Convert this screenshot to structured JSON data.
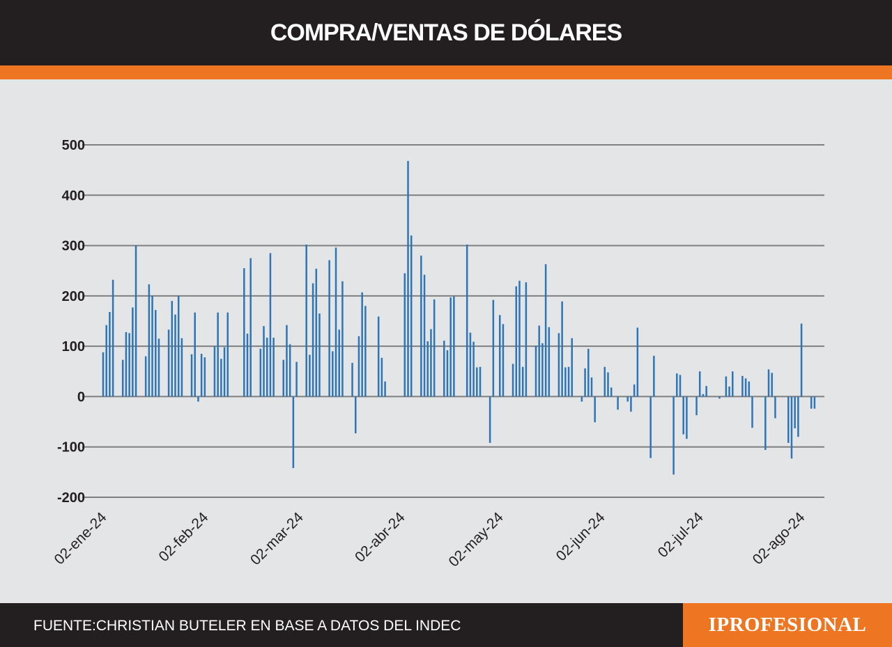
{
  "header": {
    "title": "COMPRA/VENTAS DE DÓLARES"
  },
  "footer": {
    "source": "FUENTE:CHRISTIAN BUTELER EN BASE A DATOS DEL INDEC"
  },
  "brand": {
    "logo": "IPROFESIONAL"
  },
  "colors": {
    "header_bg": "#231f20",
    "accent": "#ee7623",
    "chart_bg": "#e4e5e7",
    "bar": "#2e75b6",
    "grid": "#7f7f7f"
  },
  "chart_data": {
    "type": "bar",
    "title": "COMPRA/VENTAS DE DÓLARES",
    "xlabel": "",
    "ylabel": "",
    "ylim": [
      -200,
      500
    ],
    "yticks": [
      500,
      400,
      300,
      200,
      100,
      0,
      -100,
      -200
    ],
    "grid": true,
    "legend": "none",
    "x_tick_labels": [
      {
        "date": "2024-01-02",
        "label": "02-ene-24"
      },
      {
        "date": "2024-02-02",
        "label": "02-feb-24"
      },
      {
        "date": "2024-03-02",
        "label": "02-mar-24"
      },
      {
        "date": "2024-04-02",
        "label": "02-abr-24"
      },
      {
        "date": "2024-05-02",
        "label": "02-may-24"
      },
      {
        "date": "2024-06-02",
        "label": "02-jun-24"
      },
      {
        "date": "2024-07-02",
        "label": "02-jul-24"
      },
      {
        "date": "2024-08-02",
        "label": "02-ago-24"
      }
    ],
    "x_range": [
      "2024-01-02",
      "2024-08-09"
    ],
    "series": [
      {
        "values": [
          [
            "2024-01-02",
            88
          ],
          [
            "2024-01-03",
            142
          ],
          [
            "2024-01-04",
            168
          ],
          [
            "2024-01-05",
            232
          ],
          [
            "2024-01-08",
            73
          ],
          [
            "2024-01-09",
            128
          ],
          [
            "2024-01-10",
            126
          ],
          [
            "2024-01-11",
            177
          ],
          [
            "2024-01-12",
            300
          ],
          [
            "2024-01-15",
            80
          ],
          [
            "2024-01-16",
            223
          ],
          [
            "2024-01-17",
            200
          ],
          [
            "2024-01-18",
            172
          ],
          [
            "2024-01-19",
            115
          ],
          [
            "2024-01-22",
            133
          ],
          [
            "2024-01-23",
            190
          ],
          [
            "2024-01-24",
            163
          ],
          [
            "2024-01-25",
            200
          ],
          [
            "2024-01-26",
            116
          ],
          [
            "2024-01-29",
            84
          ],
          [
            "2024-01-30",
            167
          ],
          [
            "2024-01-31",
            -10
          ],
          [
            "2024-02-01",
            85
          ],
          [
            "2024-02-02",
            78
          ],
          [
            "2024-02-05",
            100
          ],
          [
            "2024-02-06",
            167
          ],
          [
            "2024-02-07",
            75
          ],
          [
            "2024-02-08",
            98
          ],
          [
            "2024-02-09",
            167
          ],
          [
            "2024-02-14",
            255
          ],
          [
            "2024-02-15",
            125
          ],
          [
            "2024-02-16",
            275
          ],
          [
            "2024-02-19",
            95
          ],
          [
            "2024-02-20",
            140
          ],
          [
            "2024-02-21",
            117
          ],
          [
            "2024-02-22",
            285
          ],
          [
            "2024-02-23",
            117
          ],
          [
            "2024-02-26",
            73
          ],
          [
            "2024-02-27",
            142
          ],
          [
            "2024-02-28",
            104
          ],
          [
            "2024-02-29",
            -142
          ],
          [
            "2024-03-01",
            69
          ],
          [
            "2024-03-04",
            302
          ],
          [
            "2024-03-05",
            83
          ],
          [
            "2024-03-06",
            225
          ],
          [
            "2024-03-07",
            254
          ],
          [
            "2024-03-08",
            165
          ],
          [
            "2024-03-11",
            271
          ],
          [
            "2024-03-12",
            90
          ],
          [
            "2024-03-13",
            296
          ],
          [
            "2024-03-14",
            133
          ],
          [
            "2024-03-15",
            229
          ],
          [
            "2024-03-18",
            67
          ],
          [
            "2024-03-19",
            -73
          ],
          [
            "2024-03-20",
            120
          ],
          [
            "2024-03-21",
            207
          ],
          [
            "2024-03-22",
            180
          ],
          [
            "2024-03-26",
            159
          ],
          [
            "2024-03-27",
            77
          ],
          [
            "2024-03-28",
            30
          ],
          [
            "2024-04-03",
            245
          ],
          [
            "2024-04-04",
            468
          ],
          [
            "2024-04-05",
            320
          ],
          [
            "2024-04-08",
            280
          ],
          [
            "2024-04-09",
            242
          ],
          [
            "2024-04-10",
            110
          ],
          [
            "2024-04-11",
            134
          ],
          [
            "2024-04-12",
            193
          ],
          [
            "2024-04-15",
            111
          ],
          [
            "2024-04-16",
            92
          ],
          [
            "2024-04-17",
            197
          ],
          [
            "2024-04-18",
            199
          ],
          [
            "2024-04-22",
            302
          ],
          [
            "2024-04-23",
            127
          ],
          [
            "2024-04-24",
            109
          ],
          [
            "2024-04-25",
            58
          ],
          [
            "2024-04-26",
            59
          ],
          [
            "2024-04-29",
            -92
          ],
          [
            "2024-04-30",
            192
          ],
          [
            "2024-05-02",
            162
          ],
          [
            "2024-05-03",
            144
          ],
          [
            "2024-05-06",
            65
          ],
          [
            "2024-05-07",
            219
          ],
          [
            "2024-05-08",
            230
          ],
          [
            "2024-05-09",
            59
          ],
          [
            "2024-05-10",
            227
          ],
          [
            "2024-05-13",
            101
          ],
          [
            "2024-05-14",
            141
          ],
          [
            "2024-05-15",
            106
          ],
          [
            "2024-05-16",
            263
          ],
          [
            "2024-05-17",
            138
          ],
          [
            "2024-05-20",
            126
          ],
          [
            "2024-05-21",
            189
          ],
          [
            "2024-05-22",
            58
          ],
          [
            "2024-05-23",
            59
          ],
          [
            "2024-05-24",
            116
          ],
          [
            "2024-05-27",
            -10
          ],
          [
            "2024-05-28",
            56
          ],
          [
            "2024-05-29",
            95
          ],
          [
            "2024-05-30",
            38
          ],
          [
            "2024-05-31",
            -51
          ],
          [
            "2024-06-03",
            59
          ],
          [
            "2024-06-04",
            48
          ],
          [
            "2024-06-05",
            18
          ],
          [
            "2024-06-07",
            -26
          ],
          [
            "2024-06-10",
            -10
          ],
          [
            "2024-06-11",
            -30
          ],
          [
            "2024-06-12",
            24
          ],
          [
            "2024-06-13",
            137
          ],
          [
            "2024-06-17",
            -122
          ],
          [
            "2024-06-18",
            81
          ],
          [
            "2024-06-24",
            -155
          ],
          [
            "2024-06-25",
            46
          ],
          [
            "2024-06-26",
            43
          ],
          [
            "2024-06-27",
            -75
          ],
          [
            "2024-06-28",
            -84
          ],
          [
            "2024-07-01",
            -37
          ],
          [
            "2024-07-02",
            50
          ],
          [
            "2024-07-03",
            5
          ],
          [
            "2024-07-04",
            21
          ],
          [
            "2024-07-08",
            -4
          ],
          [
            "2024-07-10",
            40
          ],
          [
            "2024-07-11",
            20
          ],
          [
            "2024-07-12",
            50
          ],
          [
            "2024-07-15",
            41
          ],
          [
            "2024-07-16",
            36
          ],
          [
            "2024-07-17",
            30
          ],
          [
            "2024-07-18",
            -62
          ],
          [
            "2024-07-22",
            -106
          ],
          [
            "2024-07-23",
            54
          ],
          [
            "2024-07-24",
            47
          ],
          [
            "2024-07-25",
            -43
          ],
          [
            "2024-07-29",
            -92
          ],
          [
            "2024-07-30",
            -123
          ],
          [
            "2024-07-31",
            -63
          ],
          [
            "2024-08-01",
            -80
          ],
          [
            "2024-08-02",
            145
          ],
          [
            "2024-08-05",
            -24
          ],
          [
            "2024-08-06",
            -24
          ]
        ]
      }
    ]
  }
}
